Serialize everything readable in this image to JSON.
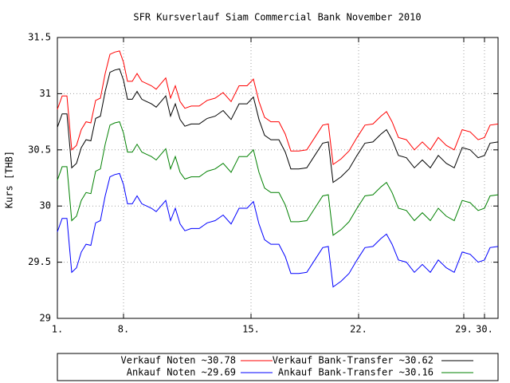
{
  "chart_data": {
    "type": "line",
    "title": "SFR Kursverlauf Siam Commercial Bank November 2010",
    "ylabel": "Kurs [THB]",
    "x": [
      0,
      6,
      12,
      18,
      24,
      30,
      36,
      42,
      48,
      54,
      60,
      66,
      72,
      78,
      83,
      88,
      94,
      100,
      106,
      112,
      118,
      124,
      130,
      136,
      142,
      148,
      154,
      160,
      168,
      178,
      188,
      198,
      208,
      218,
      228,
      238,
      246,
      253,
      260,
      268,
      278,
      286,
      293,
      303,
      313,
      323,
      333,
      340,
      346,
      356,
      366,
      376,
      386,
      396,
      406,
      413,
      420,
      428,
      438,
      448,
      458,
      468,
      478,
      488,
      498,
      508,
      518,
      528,
      536,
      543,
      553
    ],
    "xlim": [
      0,
      553
    ],
    "xticks": [
      {
        "value": 0,
        "label": "1."
      },
      {
        "value": 83,
        "label": "8."
      },
      {
        "value": 243,
        "label": "15."
      },
      {
        "value": 378,
        "label": "22."
      },
      {
        "value": 510,
        "label": "29."
      },
      {
        "value": 536,
        "label": "30."
      }
    ],
    "ylim": [
      29,
      31.5
    ],
    "yticks": [
      29,
      29.5,
      30,
      30.5,
      31,
      31.5
    ],
    "grid": true,
    "series": [
      {
        "name": "Verkauf Noten ~30.78",
        "color": "#ff0000",
        "values": [
          30.86,
          30.98,
          30.98,
          30.5,
          30.54,
          30.68,
          30.75,
          30.74,
          30.94,
          30.96,
          31.18,
          31.35,
          31.37,
          31.38,
          31.28,
          31.11,
          31.11,
          31.18,
          31.11,
          31.09,
          31.07,
          31.04,
          31.09,
          31.14,
          30.96,
          31.07,
          30.93,
          30.87,
          30.89,
          30.89,
          30.94,
          30.96,
          31.01,
          30.93,
          31.07,
          31.07,
          31.13,
          30.93,
          30.79,
          30.75,
          30.75,
          30.64,
          30.49,
          30.49,
          30.5,
          30.61,
          30.72,
          30.73,
          30.37,
          30.42,
          30.49,
          30.61,
          30.72,
          30.73,
          30.8,
          30.84,
          30.75,
          30.61,
          30.59,
          30.5,
          30.57,
          30.5,
          30.61,
          30.54,
          30.5,
          30.68,
          30.66,
          30.59,
          30.61,
          30.72,
          30.73
        ]
      },
      {
        "name": "Verkauf Bank-Transfer ~30.62",
        "color": "#000000",
        "values": [
          30.7,
          30.82,
          30.82,
          30.34,
          30.38,
          30.52,
          30.59,
          30.58,
          30.78,
          30.8,
          31.02,
          31.19,
          31.21,
          31.22,
          31.12,
          30.95,
          30.95,
          31.02,
          30.95,
          30.93,
          30.91,
          30.88,
          30.93,
          30.98,
          30.8,
          30.91,
          30.77,
          30.71,
          30.73,
          30.73,
          30.78,
          30.8,
          30.85,
          30.77,
          30.91,
          30.91,
          30.97,
          30.77,
          30.63,
          30.59,
          30.59,
          30.48,
          30.33,
          30.33,
          30.34,
          30.45,
          30.56,
          30.57,
          30.21,
          30.26,
          30.33,
          30.45,
          30.56,
          30.57,
          30.64,
          30.68,
          30.59,
          30.45,
          30.43,
          30.34,
          30.41,
          30.34,
          30.45,
          30.38,
          30.34,
          30.52,
          30.5,
          30.43,
          30.45,
          30.56,
          30.57
        ]
      },
      {
        "name": "Ankauf Noten ~29.69",
        "color": "#0000ff",
        "values": [
          29.77,
          29.89,
          29.89,
          29.41,
          29.45,
          29.59,
          29.66,
          29.65,
          29.85,
          29.87,
          30.09,
          30.26,
          30.28,
          30.29,
          30.19,
          30.02,
          30.02,
          30.09,
          30.02,
          30.0,
          29.98,
          29.95,
          30.0,
          30.05,
          29.87,
          29.98,
          29.84,
          29.78,
          29.8,
          29.8,
          29.85,
          29.87,
          29.92,
          29.84,
          29.98,
          29.98,
          30.04,
          29.84,
          29.7,
          29.66,
          29.66,
          29.55,
          29.4,
          29.4,
          29.41,
          29.52,
          29.63,
          29.64,
          29.28,
          29.33,
          29.4,
          29.52,
          29.63,
          29.64,
          29.71,
          29.75,
          29.66,
          29.52,
          29.5,
          29.41,
          29.48,
          29.41,
          29.52,
          29.45,
          29.41,
          29.59,
          29.57,
          29.5,
          29.52,
          29.63,
          29.64
        ]
      },
      {
        "name": "Ankauf Bank-Transfer ~30.16",
        "color": "#008000",
        "values": [
          30.23,
          30.35,
          30.35,
          29.87,
          29.91,
          30.05,
          30.12,
          30.11,
          30.31,
          30.33,
          30.55,
          30.72,
          30.74,
          30.75,
          30.65,
          30.48,
          30.48,
          30.55,
          30.48,
          30.46,
          30.44,
          30.41,
          30.46,
          30.51,
          30.33,
          30.44,
          30.3,
          30.24,
          30.26,
          30.26,
          30.31,
          30.33,
          30.38,
          30.3,
          30.44,
          30.44,
          30.5,
          30.3,
          30.16,
          30.12,
          30.12,
          30.01,
          29.86,
          29.86,
          29.87,
          29.98,
          30.09,
          30.1,
          29.74,
          29.79,
          29.86,
          29.98,
          30.09,
          30.1,
          30.17,
          30.21,
          30.12,
          29.98,
          29.96,
          29.87,
          29.94,
          29.87,
          29.98,
          29.91,
          29.87,
          30.05,
          30.03,
          29.96,
          29.98,
          30.09,
          30.1
        ]
      }
    ]
  }
}
